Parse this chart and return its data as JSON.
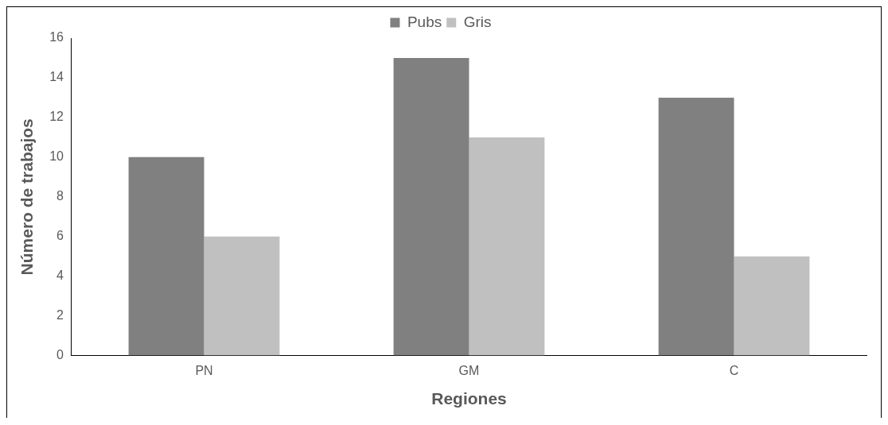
{
  "chart_data": {
    "type": "bar",
    "xlabel": "Regiones",
    "ylabel": "Número de trabajos",
    "categories": [
      "PN",
      "GM",
      "C"
    ],
    "series": [
      {
        "name": "Pubs",
        "color": "#808080",
        "values": [
          10,
          15,
          13
        ]
      },
      {
        "name": "Gris",
        "color": "#c0c0c0",
        "values": [
          6,
          11,
          5
        ]
      }
    ],
    "ylim": [
      0,
      16
    ],
    "yticks": [
      0,
      2,
      4,
      6,
      8,
      10,
      12,
      14,
      16
    ],
    "grid": false,
    "legend": "top"
  }
}
